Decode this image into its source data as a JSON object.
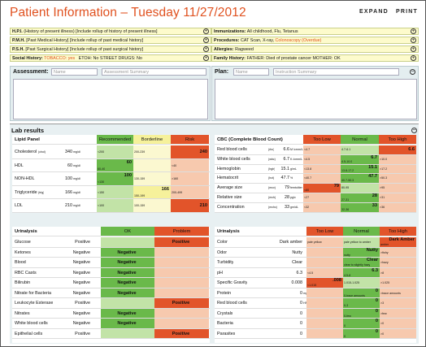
{
  "header": {
    "title": "Patient Information – Tuesday 11/27/2012",
    "expand": "EXPAND",
    "print": "PRINT"
  },
  "history": {
    "left": [
      {
        "key": "H.P.I.",
        "text": "(History of present illness) [Include rollup of history of present illness]"
      },
      {
        "key": "P.M.H.",
        "text": "[Past Medical History] [Include rollup of past medical history]"
      },
      {
        "key": "P.S.H.",
        "text": "[Past Surgical History] [Include rollup of past surgical history]"
      },
      {
        "key": "Social History:",
        "text1": "TOBACCO: yes",
        "text2": "ETOH: No      STREET DRUGS: No"
      }
    ],
    "right": [
      {
        "key": "Immunizations:",
        "text": "All childhood, Flu, Tetanus"
      },
      {
        "key": "Procedures:",
        "text": "CAT Scan, X-ray,",
        "text2": "Colonoscopy (Overdue)"
      },
      {
        "key": "Allergies:",
        "text": "Ragweed"
      },
      {
        "key": "Family History:",
        "text": "FATHER: Died of prostate cancer     MOTHER: OK"
      }
    ]
  },
  "assessment": {
    "label": "Assessment:",
    "name_ph": "Name",
    "summary_ph": "Assessment Summary"
  },
  "plan": {
    "label": "Plan:",
    "name_ph": "Name",
    "summary_ph": "Instruction Summary"
  },
  "labs": {
    "title": "Lab results",
    "lipid": {
      "title": "Lipid Panel",
      "cols": [
        "Recommended",
        "Borderline",
        "Risk"
      ],
      "rows": [
        {
          "name": "Cholesterol",
          "unit": "(chol)",
          "value": "340",
          "vu": "mg/dl",
          "r": "<200",
          "b": "200-239",
          "k": "240",
          "level": "risk"
        },
        {
          "name": "HDL",
          "unit": "",
          "value": "60",
          "vu": "mg/dl",
          "r": "60",
          "r2": "60-40",
          "b": "",
          "k": "<40",
          "level": "rec"
        },
        {
          "name": "NON-HDL",
          "unit": "",
          "value": "100",
          "vu": "mg/dl",
          "r": "100",
          "r2": "<130",
          "b": "130-159",
          "k": ">160",
          "level": "rec"
        },
        {
          "name": "Triglyceride",
          "unit": "(trig)",
          "value": "166",
          "vu": "mg/dl",
          "r": "<150",
          "b": "166",
          "b2": "150-199",
          "k": "200-499",
          "level": "bord"
        },
        {
          "name": "LDL",
          "unit": "",
          "value": "210",
          "vu": "mg/dl",
          "r": "<100",
          "b": "100-159",
          "k": "210",
          "level": "risk"
        }
      ]
    },
    "cbc": {
      "title": "CBC (Complete Blood Count)",
      "cols": [
        "Too Low",
        "Normal",
        "Too High"
      ],
      "rows": [
        {
          "name": "Red blood cells",
          "unit": "(rbc)",
          "value": "6.6",
          "vu": "M /cmm/L",
          "l": "<4.7",
          "n": "4.7-6.1",
          "h": "6.6",
          "level": "high"
        },
        {
          "name": "White blood cells",
          "unit": "(wbc)",
          "value": "6.7",
          "vu": "K /cmm/L",
          "l": "<4.5",
          "n": "6.7",
          "n2": "4.5-10.0",
          "h": ">10.0",
          "level": "norm"
        },
        {
          "name": "Hemoglobin",
          "unit": "(hgb)",
          "value": "15.1",
          "vu": "g/mL",
          "l": "<13.8",
          "n": "15.1",
          "n2": "13.8-17.2",
          "h": ">17.2",
          "level": "norm"
        },
        {
          "name": "Hematocrit",
          "unit": "(hct)",
          "value": "47.7",
          "vu": "%",
          "l": "<40.7",
          "n": "47.7",
          "n2": "40.7-50.3",
          "h": ">50.3",
          "level": "norm"
        },
        {
          "name": "Average size",
          "unit": "(mcv)",
          "value": "79",
          "vu": "femtoliter",
          "l": "79",
          "l2": "<80",
          "n": "80-95",
          "h": ">95",
          "level": "low"
        },
        {
          "name": "Relative size",
          "unit": "(mch)",
          "value": "28",
          "vu": "pg/c",
          "l": "<27",
          "n": "28",
          "n2": "27-31",
          "h": ">31",
          "level": "norm"
        },
        {
          "name": "Concentration",
          "unit": "(mchc)",
          "value": "33",
          "vu": "gm/dL",
          "l": "<32",
          "n": "33",
          "n2": "32-36",
          "h": ">36",
          "level": "norm"
        }
      ]
    },
    "urin1": {
      "title": "Urinalysis",
      "cols": [
        "OK",
        "Problem"
      ],
      "rows": [
        {
          "name": "Glucose",
          "value": "Positive",
          "ok": "",
          "pr": "Positive",
          "level": "prob"
        },
        {
          "name": "Ketones",
          "value": "Negative",
          "ok": "Negative",
          "pr": "",
          "level": "ok"
        },
        {
          "name": "Blood",
          "value": "Negative",
          "ok": "Negative",
          "pr": "",
          "level": "ok"
        },
        {
          "name": "RBC Casts",
          "value": "Negative",
          "ok": "Negative",
          "pr": "",
          "level": "ok"
        },
        {
          "name": "Bilirubin",
          "value": "Negative",
          "ok": "Negative",
          "pr": "",
          "level": "ok"
        },
        {
          "name": "Nitrate for Bacteria",
          "value": "Negative",
          "ok": "Negative",
          "pr": "",
          "level": "ok"
        },
        {
          "name": "Leukocyte Esterase",
          "value": "Positive",
          "ok": "",
          "pr": "Positive",
          "level": "prob"
        },
        {
          "name": "Nitrates",
          "value": "Negative",
          "ok": "Negative",
          "pr": "",
          "level": "ok"
        },
        {
          "name": "White blood cells",
          "value": "Negative",
          "ok": "Negative",
          "pr": "",
          "level": "ok"
        },
        {
          "name": "Epithelial cells",
          "value": "Positive",
          "ok": "",
          "pr": "Positive",
          "level": "prob"
        }
      ]
    },
    "urin2": {
      "title": "Urinalysis",
      "cols": [
        "Too Low",
        "Normal",
        "Too High"
      ],
      "rows": [
        {
          "name": "Color",
          "value": "Dark amber",
          "l": "pale yellow",
          "n": "pale yellow to amber",
          "h": "Dark Amber",
          "h2": "amber",
          "level": "high"
        },
        {
          "name": "Odor",
          "value": "Nutty",
          "l": "",
          "n": "Nutty",
          "n2": "nutty",
          "h": ">fishy",
          "level": "norm"
        },
        {
          "name": "Turbidity",
          "value": "Clear",
          "l": "",
          "n": "Clear",
          "n2": "clear to slightly hazy",
          "h": ">hazy",
          "level": "norm"
        },
        {
          "name": "pH",
          "value": "6.3",
          "l": "<4.5",
          "n": "6.3",
          "n2": "4.5-8",
          "h": ">8",
          "level": "norm"
        },
        {
          "name": "Specific Gravity",
          "value": "0.008",
          "l": ".008",
          "l2": "<1.015",
          "n": "1.015-1.025",
          "h": ">1.025",
          "level": "low"
        },
        {
          "name": "Protein",
          "value": "0",
          "vu": "mg/dl",
          "l": "",
          "n": "0",
          "n2": "0-trace amounts",
          "h": ">trace amounts",
          "level": "norm"
        },
        {
          "name": "Red blood cells",
          "value": "0",
          "vu": "HPF",
          "l": "",
          "n": "0",
          "n2": "0-3",
          "h": ">3",
          "level": "norm"
        },
        {
          "name": "Crystals",
          "value": "0",
          "l": "",
          "n": "0",
          "n2": "0-few",
          "h": ">few",
          "level": "norm"
        },
        {
          "name": "Bacteria",
          "value": "0",
          "l": "",
          "n": "0",
          "n2": "0",
          "h": ">0",
          "level": "norm"
        },
        {
          "name": "Parasites",
          "value": "0",
          "l": "",
          "n": "0",
          "n2": "0",
          "h": ">0",
          "level": "norm"
        }
      ]
    }
  }
}
